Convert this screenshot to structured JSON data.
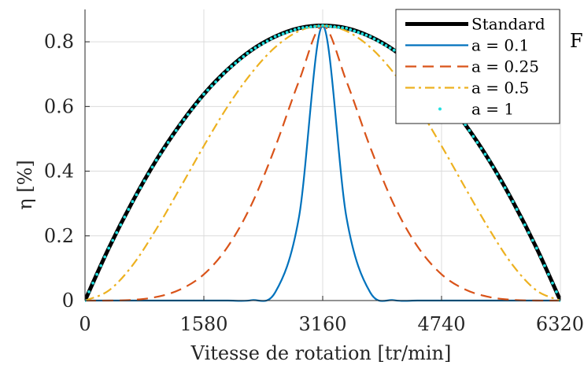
{
  "chart_data": {
    "type": "line",
    "xlabel": "Vitesse de rotation [tr/min]",
    "ylabel": "η [%]",
    "xlim": [
      0,
      6320
    ],
    "ylim": [
      0,
      0.9
    ],
    "xticks": [
      0,
      1580,
      3160,
      4740,
      6320
    ],
    "xtick_labels": [
      "0",
      "1580",
      "3160",
      "4740",
      "6320"
    ],
    "yticks": [
      0,
      0.2,
      0.4,
      0.6,
      0.8
    ],
    "ytick_labels": [
      "0",
      "0.2",
      "0.4",
      "0.6",
      "0.8"
    ],
    "grid": true,
    "legend_position": "top-right",
    "annotation_text": "F",
    "peak_x": 3160,
    "peak_y": 0.85,
    "x_samples": [
      0,
      316,
      632,
      948,
      1264,
      1580,
      1896,
      2212,
      2528,
      2844,
      3160,
      3476,
      3792,
      4108,
      4424,
      4740,
      5056,
      5372,
      5688,
      6004,
      6320
    ],
    "series": [
      {
        "name": "Standard",
        "color": "#000000",
        "style": "solid-thick",
        "values": [
          0,
          0.162,
          0.306,
          0.434,
          0.544,
          0.638,
          0.714,
          0.774,
          0.816,
          0.842,
          0.85,
          0.842,
          0.816,
          0.774,
          0.714,
          0.638,
          0.544,
          0.434,
          0.306,
          0.162,
          0
        ]
      },
      {
        "name": "a = 0.1",
        "color": "#0072BD",
        "style": "solid",
        "values": [
          0,
          0,
          0,
          0,
          0,
          0,
          0,
          0.001,
          0.025,
          0.257,
          0.85,
          0.257,
          0.025,
          0.001,
          0,
          0,
          0,
          0,
          0,
          0,
          0
        ]
      },
      {
        "name": "a = 0.25",
        "color": "#D95319",
        "style": "dashed",
        "values": [
          0,
          0,
          0.002,
          0.011,
          0.034,
          0.081,
          0.166,
          0.296,
          0.474,
          0.678,
          0.85,
          0.678,
          0.474,
          0.296,
          0.166,
          0.081,
          0.034,
          0.011,
          0.002,
          0,
          0
        ]
      },
      {
        "name": "a = 0.5",
        "color": "#EDB120",
        "style": "dashdot",
        "values": [
          0,
          0.031,
          0.109,
          0.221,
          0.348,
          0.478,
          0.6,
          0.703,
          0.783,
          0.833,
          0.85,
          0.833,
          0.783,
          0.703,
          0.6,
          0.478,
          0.348,
          0.221,
          0.109,
          0.031,
          0
        ]
      },
      {
        "name": "a = 1",
        "color": "#22E0E0",
        "style": "dotted",
        "values": [
          0,
          0.162,
          0.306,
          0.434,
          0.544,
          0.638,
          0.714,
          0.774,
          0.816,
          0.842,
          0.85,
          0.842,
          0.816,
          0.774,
          0.714,
          0.638,
          0.544,
          0.434,
          0.306,
          0.162,
          0
        ]
      }
    ]
  }
}
